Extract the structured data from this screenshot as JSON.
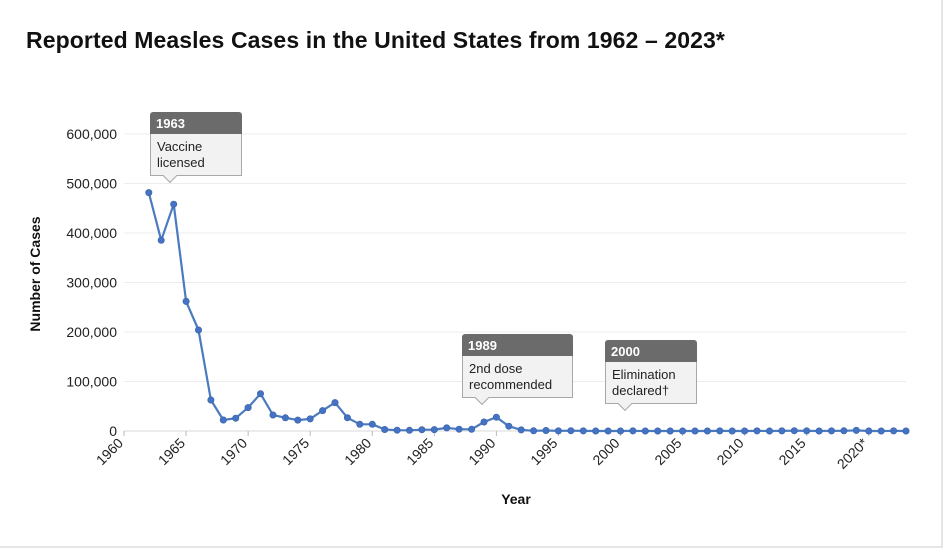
{
  "title": "Reported Measles Cases in the United States from 1962 – 2023*",
  "callouts": [
    {
      "year_label": "1963",
      "text": "Vaccine\nlicensed"
    },
    {
      "year_label": "1989",
      "text": "2nd dose\nrecommended"
    },
    {
      "year_label": "2000",
      "text": "Elimination\ndeclared†"
    }
  ],
  "chart_data": {
    "type": "line",
    "xlabel": "Year",
    "ylabel": "Number of Cases",
    "xlim": [
      1960,
      2023
    ],
    "ylim": [
      0,
      600000
    ],
    "x_ticks": [
      "1960",
      "1965",
      "1970",
      "1975",
      "1980",
      "1985",
      "1990",
      "1995",
      "2000",
      "2005",
      "2010",
      "2015",
      "2020*"
    ],
    "y_ticks": [
      "0",
      "100,000",
      "200,000",
      "300,000",
      "400,000",
      "500,000",
      "600,000"
    ],
    "grid": "horizontal",
    "colors": {
      "line": "#4a7bbf",
      "marker": "#4472c4",
      "grid": "#ececec"
    },
    "series": [
      {
        "x": [
          1962,
          1963,
          1964,
          1965,
          1966,
          1967,
          1968,
          1969,
          1970,
          1971,
          1972,
          1973,
          1974,
          1975,
          1976,
          1977,
          1978,
          1979,
          1980,
          1981,
          1982,
          1983,
          1984,
          1985,
          1986,
          1987,
          1988,
          1989,
          1990,
          1991,
          1992,
          1993,
          1994,
          1995,
          1996,
          1997,
          1998,
          1999,
          2000,
          2001,
          2002,
          2003,
          2004,
          2005,
          2006,
          2007,
          2008,
          2009,
          2010,
          2011,
          2012,
          2013,
          2014,
          2015,
          2016,
          2017,
          2018,
          2019,
          2020,
          2021,
          2022,
          2023
        ],
        "values": [
          481530,
          385156,
          458083,
          261904,
          204136,
          62705,
          22231,
          25826,
          47351,
          75290,
          32275,
          26690,
          22094,
          24374,
          41126,
          57345,
          26871,
          13597,
          13506,
          3124,
          1714,
          1497,
          2587,
          2822,
          6282,
          3655,
          3396,
          18193,
          27786,
          9643,
          2237,
          312,
          963,
          281,
          508,
          138,
          100,
          100,
          86,
          116,
          44,
          56,
          37,
          66,
          55,
          43,
          140,
          71,
          63,
          220,
          55,
          187,
          667,
          188,
          86,
          120,
          375,
          1274,
          13,
          49,
          121,
          59
        ]
      }
    ]
  }
}
